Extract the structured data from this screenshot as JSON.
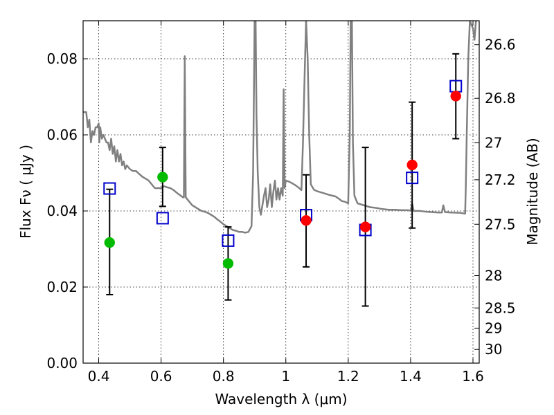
{
  "chart_data": {
    "type": "scatter",
    "title": "",
    "xlabel": "Wavelength  λ (μm)",
    "ylabel": "Flux  Fν  ( μJy )",
    "y2label": "Magnitude (AB)",
    "xlim": [
      0.35,
      1.62
    ],
    "ylim": [
      0.0,
      0.09
    ],
    "grid": true,
    "x_ticks": [
      0.4,
      0.6,
      0.8,
      1.0,
      1.2,
      1.4,
      1.6
    ],
    "x_tick_labels": [
      "0.4",
      "0.6",
      "0.8",
      "1",
      "1.2",
      "1.4",
      "1.6"
    ],
    "y_ticks": [
      0.0,
      0.02,
      0.04,
      0.06,
      0.08
    ],
    "y_tick_labels": [
      "0.00",
      "0.02",
      "0.04",
      "0.06",
      "0.08"
    ],
    "y2_ticks": [
      {
        "label": "26.6",
        "flux": 0.0837
      },
      {
        "label": "26.8",
        "flux": 0.0696
      },
      {
        "label": "27",
        "flux": 0.0579
      },
      {
        "label": "27.2",
        "flux": 0.0482
      },
      {
        "label": "27.5",
        "flux": 0.0365
      },
      {
        "label": "28",
        "flux": 0.023
      },
      {
        "label": "28.5",
        "flux": 0.0145
      },
      {
        "label": "29",
        "flux": 0.0092
      },
      {
        "label": "30",
        "flux": 0.0036
      }
    ],
    "series": [
      {
        "kind": "model-spectrum",
        "color": "#808080",
        "points": [
          [
            0.35,
            0.066
          ],
          [
            0.36,
            0.066
          ],
          [
            0.365,
            0.062
          ],
          [
            0.37,
            0.064
          ],
          [
            0.375,
            0.058
          ],
          [
            0.38,
            0.061
          ],
          [
            0.385,
            0.06
          ],
          [
            0.39,
            0.062
          ],
          [
            0.395,
            0.062
          ],
          [
            0.4,
            0.063
          ],
          [
            0.402,
            0.058
          ],
          [
            0.405,
            0.062
          ],
          [
            0.41,
            0.059
          ],
          [
            0.415,
            0.06
          ],
          [
            0.42,
            0.059
          ],
          [
            0.425,
            0.058
          ],
          [
            0.43,
            0.058
          ],
          [
            0.435,
            0.056
          ],
          [
            0.44,
            0.059
          ],
          [
            0.445,
            0.055
          ],
          [
            0.45,
            0.057
          ],
          [
            0.455,
            0.053
          ],
          [
            0.46,
            0.056
          ],
          [
            0.465,
            0.053
          ],
          [
            0.47,
            0.055
          ],
          [
            0.475,
            0.052
          ],
          [
            0.48,
            0.053
          ],
          [
            0.485,
            0.051
          ],
          [
            0.49,
            0.052
          ],
          [
            0.5,
            0.051
          ],
          [
            0.51,
            0.0505
          ],
          [
            0.52,
            0.0505
          ],
          [
            0.53,
            0.0497
          ],
          [
            0.54,
            0.049
          ],
          [
            0.55,
            0.0485
          ],
          [
            0.56,
            0.048
          ],
          [
            0.57,
            0.047
          ],
          [
            0.58,
            0.046
          ],
          [
            0.59,
            0.046
          ],
          [
            0.6,
            0.046
          ],
          [
            0.61,
            0.0465
          ],
          [
            0.62,
            0.0462
          ],
          [
            0.63,
            0.046
          ],
          [
            0.64,
            0.0455
          ],
          [
            0.65,
            0.0448
          ],
          [
            0.66,
            0.0442
          ],
          [
            0.67,
            0.0436
          ],
          [
            0.673,
            0.0436
          ],
          [
            0.676,
            0.0807
          ],
          [
            0.679,
            0.0436
          ],
          [
            0.69,
            0.0425
          ],
          [
            0.7,
            0.0415
          ],
          [
            0.71,
            0.041
          ],
          [
            0.72,
            0.0405
          ],
          [
            0.73,
            0.04
          ],
          [
            0.74,
            0.0398
          ],
          [
            0.75,
            0.0395
          ],
          [
            0.76,
            0.039
          ],
          [
            0.77,
            0.0385
          ],
          [
            0.78,
            0.0378
          ],
          [
            0.79,
            0.0372
          ],
          [
            0.8,
            0.0365
          ],
          [
            0.81,
            0.036
          ],
          [
            0.82,
            0.0355
          ],
          [
            0.83,
            0.035
          ],
          [
            0.84,
            0.0348
          ],
          [
            0.85,
            0.0345
          ],
          [
            0.86,
            0.0345
          ],
          [
            0.87,
            0.0343
          ],
          [
            0.88,
            0.0345
          ],
          [
            0.89,
            0.036
          ],
          [
            0.895,
            0.05
          ],
          [
            0.9,
            0.0905
          ],
          [
            0.903,
            0.0905
          ],
          [
            0.906,
            0.065
          ],
          [
            0.91,
            0.05
          ],
          [
            0.915,
            0.041
          ],
          [
            0.92,
            0.039
          ],
          [
            0.93,
            0.044
          ],
          [
            0.935,
            0.046
          ],
          [
            0.94,
            0.041
          ],
          [
            0.945,
            0.043
          ],
          [
            0.95,
            0.047
          ],
          [
            0.955,
            0.041
          ],
          [
            0.96,
            0.045
          ],
          [
            0.965,
            0.048
          ],
          [
            0.97,
            0.043
          ],
          [
            0.975,
            0.046
          ],
          [
            0.98,
            0.043
          ],
          [
            0.985,
            0.046
          ],
          [
            0.99,
            0.044
          ],
          [
            0.993,
            0.072
          ],
          [
            0.996,
            0.046
          ],
          [
            1.0,
            0.048
          ],
          [
            1.01,
            0.0477
          ],
          [
            1.02,
            0.0473
          ],
          [
            1.03,
            0.0468
          ],
          [
            1.04,
            0.0462
          ],
          [
            1.05,
            0.0455
          ],
          [
            1.055,
            0.058
          ],
          [
            1.06,
            0.075
          ],
          [
            1.065,
            0.09
          ],
          [
            1.07,
            0.08
          ],
          [
            1.075,
            0.06
          ],
          [
            1.08,
            0.047
          ],
          [
            1.09,
            0.0456
          ],
          [
            1.1,
            0.0452
          ],
          [
            1.12,
            0.0447
          ],
          [
            1.14,
            0.0442
          ],
          [
            1.16,
            0.0438
          ],
          [
            1.17,
            0.0432
          ],
          [
            1.18,
            0.0426
          ],
          [
            1.19,
            0.0424
          ],
          [
            1.2,
            0.042
          ],
          [
            1.205,
            0.06
          ],
          [
            1.208,
            0.0905
          ],
          [
            1.212,
            0.0905
          ],
          [
            1.215,
            0.058
          ],
          [
            1.22,
            0.044
          ],
          [
            1.23,
            0.042
          ],
          [
            1.25,
            0.0415
          ],
          [
            1.27,
            0.041
          ],
          [
            1.29,
            0.0408
          ],
          [
            1.31,
            0.0405
          ],
          [
            1.33,
            0.0403
          ],
          [
            1.35,
            0.0403
          ],
          [
            1.37,
            0.0402
          ],
          [
            1.39,
            0.0402
          ],
          [
            1.4,
            0.0401
          ],
          [
            1.405,
            0.042
          ],
          [
            1.41,
            0.04
          ],
          [
            1.43,
            0.04
          ],
          [
            1.45,
            0.0398
          ],
          [
            1.47,
            0.0397
          ],
          [
            1.49,
            0.0396
          ],
          [
            1.5,
            0.0396
          ],
          [
            1.505,
            0.0415
          ],
          [
            1.51,
            0.0397
          ],
          [
            1.53,
            0.0396
          ],
          [
            1.56,
            0.0395
          ],
          [
            1.575,
            0.0393
          ],
          [
            1.577,
            0.046
          ],
          [
            1.58,
            0.06
          ],
          [
            1.585,
            0.08
          ],
          [
            1.59,
            0.09
          ],
          [
            1.6,
            0.088
          ],
          [
            1.605,
            0.085
          ],
          [
            1.61,
            0.0905
          ],
          [
            1.62,
            0.0905
          ]
        ]
      },
      {
        "kind": "observed-detections",
        "color": "#ff0000",
        "points": [
          {
            "x": 1.065,
            "y": 0.0375
          },
          {
            "x": 1.255,
            "y": 0.0358
          },
          {
            "x": 1.405,
            "y": 0.0521
          },
          {
            "x": 1.545,
            "y": 0.0702
          }
        ]
      },
      {
        "kind": "observed-other",
        "color": "#00bb00",
        "points": [
          {
            "x": 0.435,
            "y": 0.0317
          },
          {
            "x": 0.605,
            "y": 0.0489
          },
          {
            "x": 0.815,
            "y": 0.0262
          }
        ]
      },
      {
        "kind": "model-photometry",
        "color": "#0000cc",
        "marker": "open-square",
        "points": [
          {
            "x": 0.435,
            "y": 0.0459
          },
          {
            "x": 0.605,
            "y": 0.0381
          },
          {
            "x": 0.815,
            "y": 0.0322
          },
          {
            "x": 1.065,
            "y": 0.0389
          },
          {
            "x": 1.255,
            "y": 0.035
          },
          {
            "x": 1.405,
            "y": 0.0487
          },
          {
            "x": 1.545,
            "y": 0.0728
          }
        ]
      }
    ],
    "errorbars": [
      {
        "x": 0.435,
        "low": 0.018,
        "high": 0.0457
      },
      {
        "x": 0.605,
        "low": 0.0412,
        "high": 0.0567
      },
      {
        "x": 0.815,
        "low": 0.0166,
        "high": 0.0358
      },
      {
        "x": 1.065,
        "low": 0.0253,
        "high": 0.0495
      },
      {
        "x": 1.255,
        "low": 0.015,
        "high": 0.0567
      },
      {
        "x": 1.405,
        "low": 0.0355,
        "high": 0.0686
      },
      {
        "x": 1.545,
        "low": 0.059,
        "high": 0.0813
      }
    ]
  }
}
